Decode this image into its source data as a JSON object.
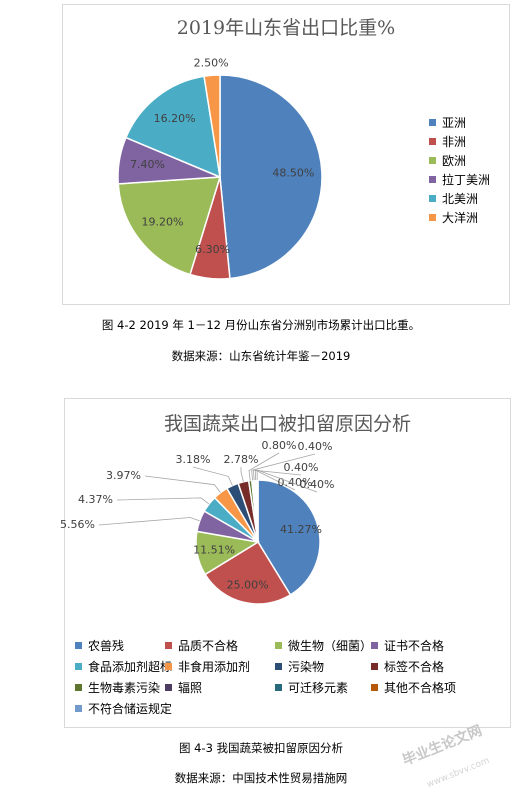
{
  "chart_data": [
    {
      "type": "pie",
      "title": "2019年山东省出口比重%",
      "legend_position": "right",
      "slices": [
        {
          "label": "亚洲",
          "value": 48.5,
          "display": "48.50%",
          "color": "#4f81bd"
        },
        {
          "label": "非洲",
          "value": 6.3,
          "display": "6.30%",
          "color": "#c0504d"
        },
        {
          "label": "欧洲",
          "value": 19.2,
          "display": "19.20%",
          "color": "#9bbb59"
        },
        {
          "label": "拉丁美洲",
          "value": 7.4,
          "display": "7.40%",
          "color": "#8064a2"
        },
        {
          "label": "北美洲",
          "value": 16.2,
          "display": "16.20%",
          "color": "#4bacc6"
        },
        {
          "label": "大洋洲",
          "value": 2.5,
          "display": "2.50%",
          "color": "#f79646"
        }
      ]
    },
    {
      "type": "pie",
      "title": "我国蔬菜出口被扣留原因分析",
      "legend_position": "bottom",
      "slices": [
        {
          "label": "农兽残",
          "value": 41.27,
          "display": "41.27%",
          "color": "#4f81bd"
        },
        {
          "label": "品质不合格",
          "value": 25.0,
          "display": "25.00%",
          "color": "#c0504d"
        },
        {
          "label": "微生物（细菌）",
          "value": 11.51,
          "display": "11.51%",
          "color": "#9bbb59"
        },
        {
          "label": "证书不合格",
          "value": 5.56,
          "display": "5.56%",
          "color": "#8064a2"
        },
        {
          "label": "食品添加剂超标",
          "value": 4.37,
          "display": "4.37%",
          "color": "#4bacc6"
        },
        {
          "label": "非食用添加剂",
          "value": 3.97,
          "display": "3.97%",
          "color": "#f79646"
        },
        {
          "label": "污染物",
          "value": 3.18,
          "display": "3.18%",
          "color": "#2c4d75"
        },
        {
          "label": "标签不合格",
          "value": 2.78,
          "display": "2.78%",
          "color": "#772c2a"
        },
        {
          "label": "生物毒素污染",
          "value": 0.8,
          "display": "0.80%",
          "color": "#5f7530"
        },
        {
          "label": "辐照",
          "value": 0.4,
          "display": "0.40%",
          "color": "#4d3b62"
        },
        {
          "label": "可迁移元素",
          "value": 0.4,
          "display": "0.40%",
          "color": "#276a7c"
        },
        {
          "label": "其他不合格项",
          "value": 0.4,
          "display": "0.40%",
          "color": "#b65708"
        },
        {
          "label": "不符合储运规定",
          "value": 0.4,
          "display": "0.40%",
          "color": "#729aca"
        }
      ]
    }
  ],
  "captions": {
    "fig1": "图 4-2 2019 年 1－12 月份山东省分洲别市场累计出口比重。",
    "source1": "数据来源：山东省统计年鉴－2019",
    "fig2": "图 4-3 我国蔬菜被扣留原因分析",
    "source2": "数据来源：中国技术性贸易措施网"
  },
  "watermark": {
    "main": "毕业生论文网",
    "sub": "www.sbvv.com"
  }
}
